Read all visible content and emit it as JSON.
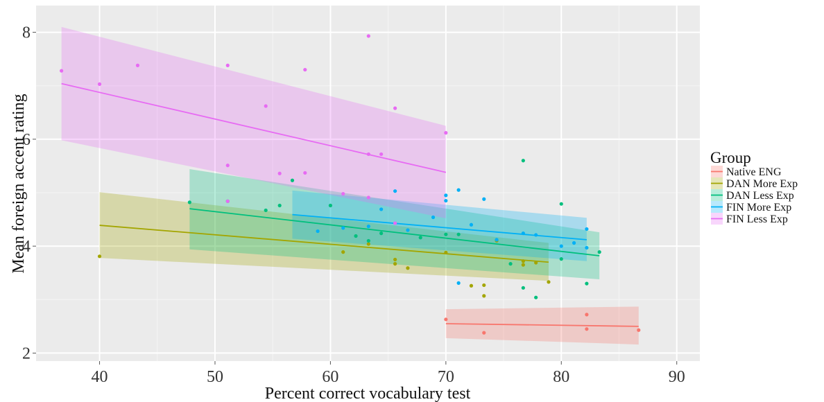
{
  "chart_data": {
    "type": "scatter",
    "xlabel": "Percent correct vocabulary test",
    "ylabel": "Mean foreign accent rating",
    "xlim": [
      34.5,
      92
    ],
    "ylim": [
      1.85,
      8.5
    ],
    "xticks": [
      40,
      50,
      60,
      70,
      80,
      90
    ],
    "yticks": [
      2,
      4,
      6,
      8
    ],
    "grid": true,
    "legend": {
      "title": "Group",
      "placement": "right",
      "entries": [
        "Native ENG",
        "DAN More Exp",
        "DAN Less Exp",
        "FIN More Exp",
        "FIN Less Exp"
      ]
    },
    "series": [
      {
        "name": "Native ENG",
        "color": "#F8766D",
        "points": [
          [
            70,
            2.63
          ],
          [
            73.3,
            2.38
          ],
          [
            82.2,
            2.72
          ],
          [
            82.2,
            2.45
          ],
          [
            86.7,
            2.43
          ]
        ],
        "fit": {
          "x": [
            70,
            86.7
          ],
          "y": [
            2.55,
            2.5
          ]
        },
        "band": {
          "x": [
            70,
            86.7
          ],
          "upper": [
            2.82,
            2.87
          ],
          "lower": [
            2.28,
            2.16
          ]
        }
      },
      {
        "name": "DAN More Exp",
        "color": "#A3A500",
        "points": [
          [
            40,
            3.81
          ],
          [
            61.1,
            3.89
          ],
          [
            63.3,
            4.04
          ],
          [
            65.6,
            3.67
          ],
          [
            65.6,
            3.75
          ],
          [
            66.7,
            3.59
          ],
          [
            70,
            3.88
          ],
          [
            72.2,
            3.26
          ],
          [
            73.3,
            3.27
          ],
          [
            73.3,
            3.07
          ],
          [
            76.7,
            3.65
          ],
          [
            76.7,
            3.72
          ],
          [
            78.9,
            3.33
          ],
          [
            77.8,
            3.69
          ],
          [
            74.4,
            4.1
          ]
        ],
        "fit": {
          "x": [
            40,
            78.9
          ],
          "y": [
            4.39,
            3.7
          ]
        },
        "band": {
          "x": [
            40,
            78.9
          ],
          "upper": [
            5.01,
            4.06
          ],
          "lower": [
            3.78,
            3.35
          ]
        }
      },
      {
        "name": "DAN Less Exp",
        "color": "#00BF7D",
        "points": [
          [
            47.8,
            4.82
          ],
          [
            51.1,
            4.84
          ],
          [
            54.4,
            4.67
          ],
          [
            55.6,
            4.76
          ],
          [
            56.7,
            5.23
          ],
          [
            60,
            4.76
          ],
          [
            62.2,
            4.19
          ],
          [
            63.3,
            4.1
          ],
          [
            64.4,
            4.24
          ],
          [
            67.8,
            4.16
          ],
          [
            70,
            4.22
          ],
          [
            71.1,
            4.22
          ],
          [
            75.6,
            3.67
          ],
          [
            76.7,
            3.22
          ],
          [
            76.7,
            5.6
          ],
          [
            77.8,
            3.04
          ],
          [
            80,
            4.79
          ],
          [
            80,
            3.76
          ],
          [
            82.2,
            3.3
          ],
          [
            83.3,
            3.89
          ]
        ],
        "fit": {
          "x": [
            47.8,
            83.3
          ],
          "y": [
            4.7,
            3.82
          ]
        },
        "band": {
          "x": [
            47.8,
            83.3
          ],
          "upper": [
            5.44,
            4.26
          ],
          "lower": [
            3.94,
            3.38
          ]
        }
      },
      {
        "name": "FIN More Exp",
        "color": "#00B0F6",
        "points": [
          [
            58.9,
            4.28
          ],
          [
            61.1,
            4.34
          ],
          [
            63.3,
            4.37
          ],
          [
            64.4,
            4.69
          ],
          [
            65.6,
            5.03
          ],
          [
            66.7,
            4.3
          ],
          [
            68.9,
            4.54
          ],
          [
            70,
            4.85
          ],
          [
            70,
            4.95
          ],
          [
            71.1,
            5.05
          ],
          [
            71.1,
            3.31
          ],
          [
            72.2,
            4.4
          ],
          [
            73.3,
            4.88
          ],
          [
            74.4,
            4.12
          ],
          [
            76.7,
            4.24
          ],
          [
            77.8,
            4.21
          ],
          [
            80,
            4.0
          ],
          [
            81.1,
            4.06
          ],
          [
            82.2,
            4.32
          ],
          [
            82.2,
            3.97
          ]
        ],
        "fit": {
          "x": [
            56.7,
            82.2
          ],
          "y": [
            4.59,
            4.12
          ]
        },
        "band": {
          "x": [
            56.7,
            82.2
          ],
          "upper": [
            5.04,
            4.53
          ],
          "lower": [
            4.14,
            3.72
          ]
        }
      },
      {
        "name": "FIN Less Exp",
        "color": "#E76BF3",
        "points": [
          [
            36.7,
            7.28
          ],
          [
            40,
            7.03
          ],
          [
            43.3,
            7.38
          ],
          [
            51.1,
            7.38
          ],
          [
            51.1,
            5.51
          ],
          [
            51.1,
            4.84
          ],
          [
            54.4,
            6.62
          ],
          [
            55.6,
            5.36
          ],
          [
            57.8,
            7.3
          ],
          [
            57.8,
            5.37
          ],
          [
            61.1,
            4.98
          ],
          [
            63.3,
            7.93
          ],
          [
            63.3,
            5.72
          ],
          [
            63.3,
            4.91
          ],
          [
            64.4,
            5.72
          ],
          [
            65.6,
            6.58
          ],
          [
            65.6,
            4.43
          ],
          [
            70,
            6.12
          ]
        ],
        "fit": {
          "x": [
            36.7,
            70
          ],
          "y": [
            7.04,
            5.38
          ]
        },
        "band": {
          "x": [
            36.7,
            70
          ],
          "upper": [
            8.1,
            6.25
          ],
          "lower": [
            5.98,
            4.52
          ]
        }
      }
    ]
  }
}
